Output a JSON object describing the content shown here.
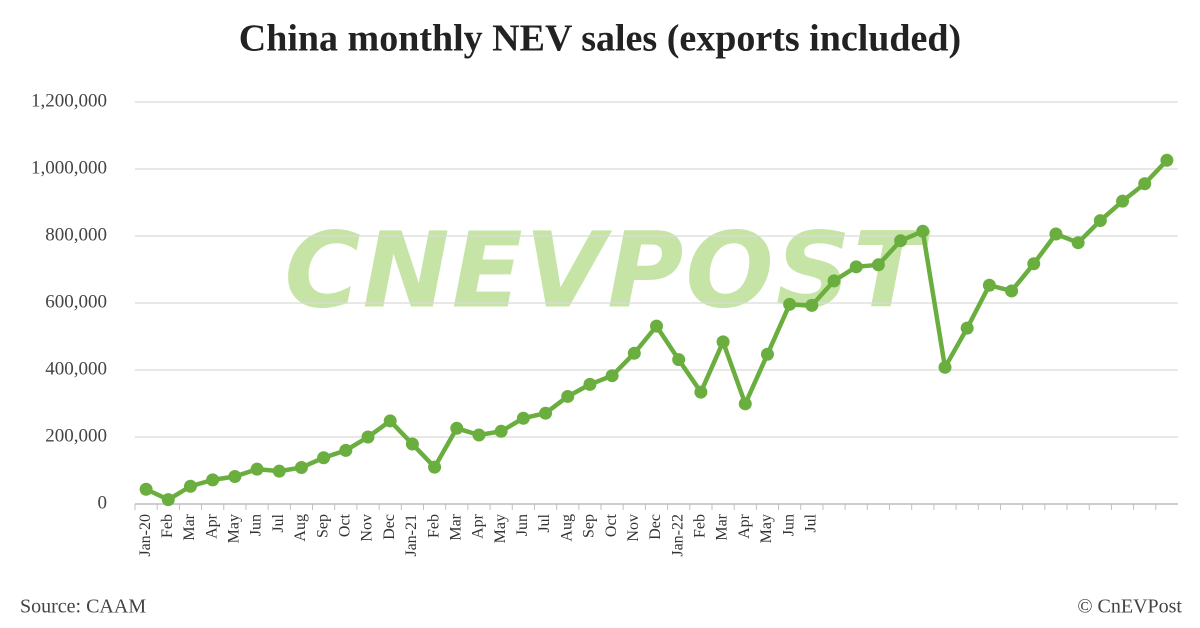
{
  "chart_data": {
    "type": "line",
    "title": "China monthly NEV sales (exports included)",
    "watermark": "CNEVPOST",
    "source": "Source: CAAM",
    "credit": "© CnEVPost",
    "categories": [
      "Jan-20",
      "Feb",
      "Mar",
      "Apr",
      "May",
      "Jun",
      "Jul",
      "Aug",
      "Sep",
      "Oct",
      "Nov",
      "Dec",
      "Jan-21",
      "Feb",
      "Mar",
      "Apr",
      "May",
      "Jun",
      "Jul",
      "Aug",
      "Sep",
      "Oct",
      "Nov",
      "Dec",
      "Jan-22",
      "Feb",
      "Mar",
      "Apr",
      "May",
      "Jun",
      "Jul",
      null,
      null,
      null,
      null,
      null,
      null,
      null,
      null,
      null,
      null,
      null,
      null,
      null,
      null,
      null,
      null
    ],
    "series": [
      {
        "name": "NEV sales",
        "color": "#6aae3f",
        "values": [
          44000,
          13000,
          53000,
          72000,
          82000,
          104000,
          98000,
          109000,
          138000,
          160000,
          200000,
          248000,
          179000,
          110000,
          226000,
          206000,
          217000,
          256000,
          271000,
          321000,
          357000,
          383000,
          450000,
          531000,
          431000,
          334000,
          484000,
          299000,
          447000,
          596000,
          593000,
          666000,
          708000,
          714000,
          786000,
          814000,
          408000,
          525000,
          653000,
          636000,
          717000,
          806000,
          780000,
          846000,
          904000,
          956000,
          1026000
        ]
      }
    ],
    "ylim": [
      0,
      1200000
    ],
    "yticks": [
      0,
      {
        "value": 200000,
        "label": "200,000"
      },
      {
        "value": 400000,
        "label": "400,000"
      },
      {
        "value": 600000,
        "label": "600,000"
      },
      {
        "value": 800000,
        "label": "800,000"
      },
      {
        "value": 1000000,
        "label": "1,000,000"
      },
      {
        "value": 1200000,
        "label": "1,200,000"
      }
    ],
    "grid": true
  }
}
